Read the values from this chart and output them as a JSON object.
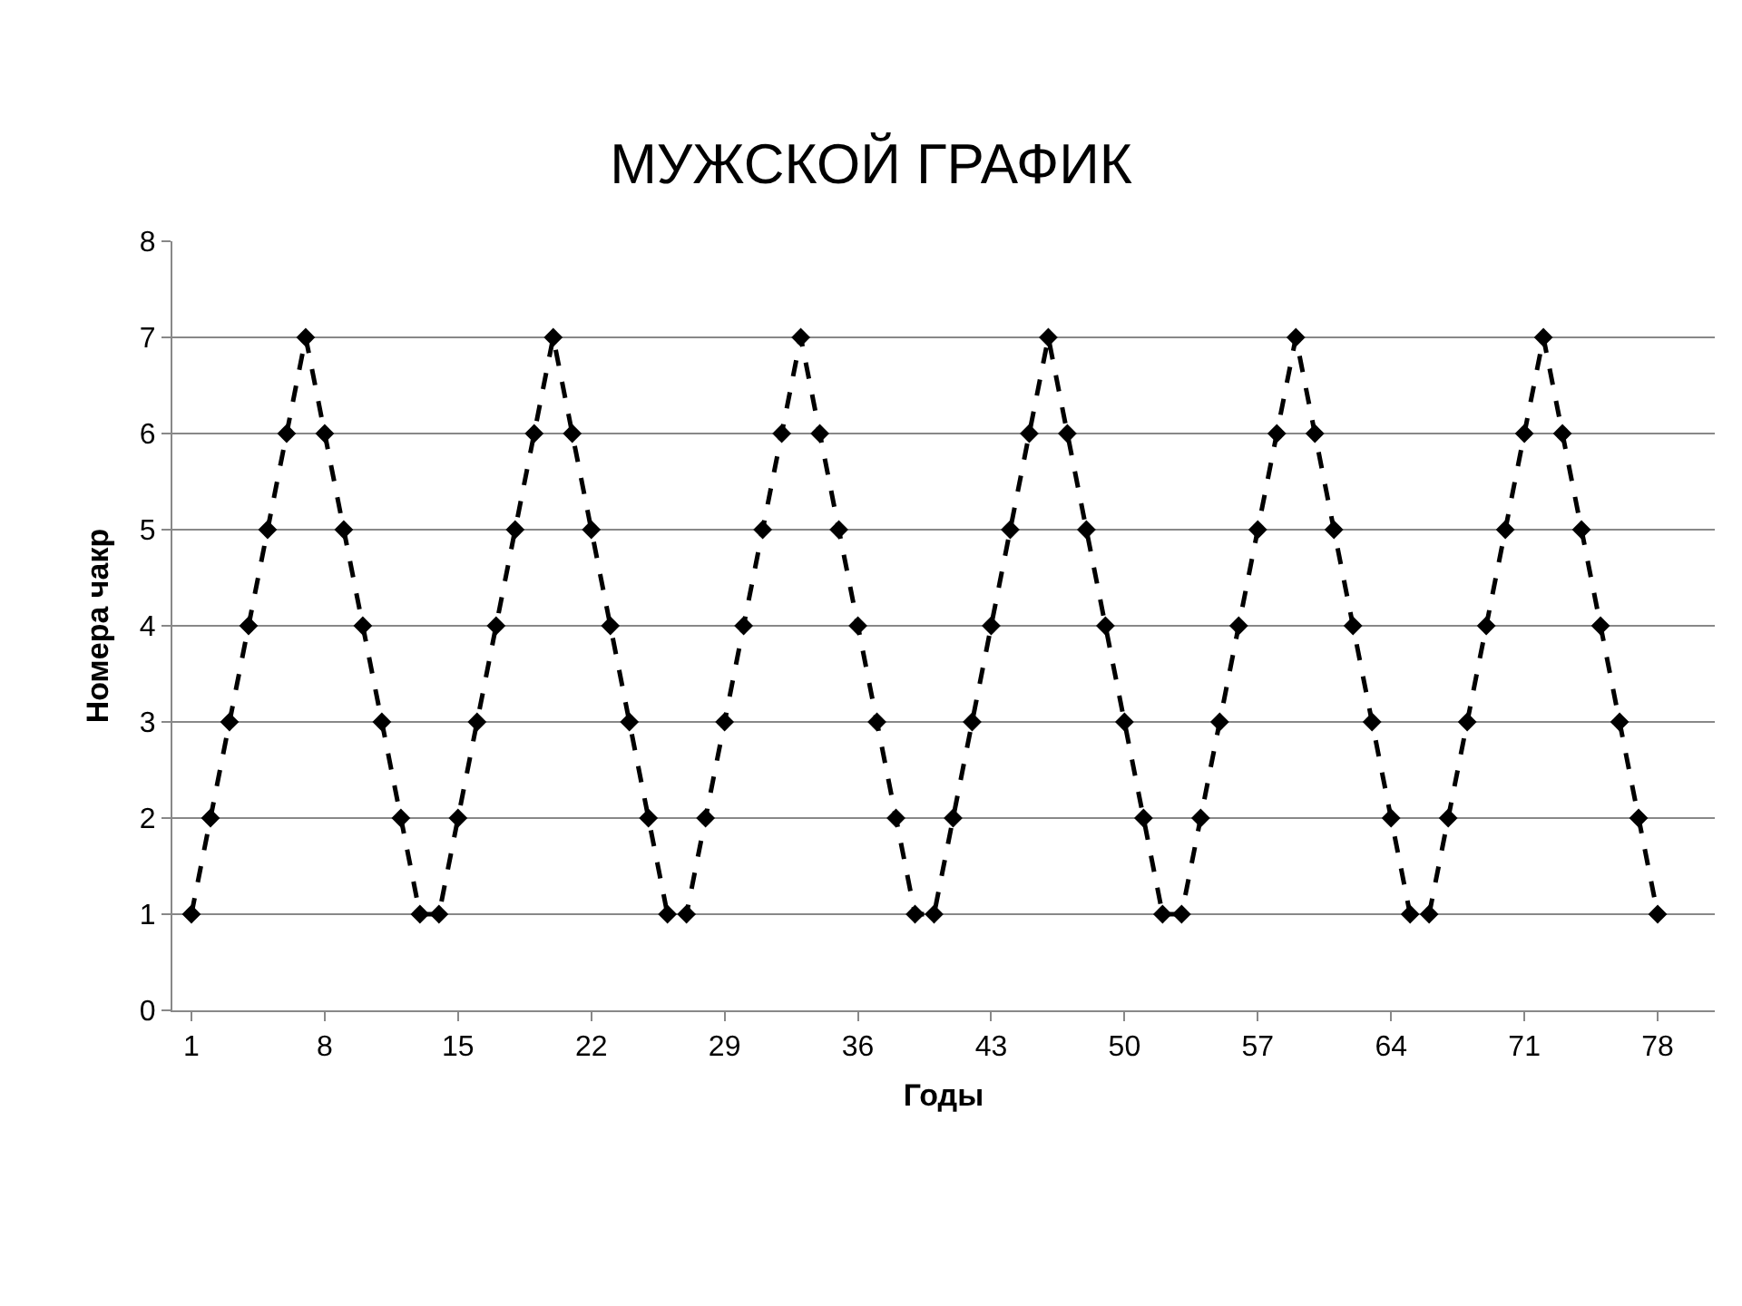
{
  "chart_data": {
    "type": "line",
    "title": "МУЖСКОЙ ГРАФИК",
    "xlabel": "Годы",
    "ylabel": "Номера чакр",
    "categories": [
      "1",
      null,
      null,
      null,
      null,
      null,
      null,
      "8",
      null,
      null,
      null,
      null,
      null,
      null,
      "15",
      null,
      null,
      null,
      null,
      null,
      null,
      "22",
      null,
      null,
      null,
      null,
      null,
      null,
      "29",
      null,
      null,
      null,
      null,
      null,
      null,
      "36",
      null,
      null,
      null,
      null,
      null,
      null,
      "43",
      null,
      null,
      null,
      null,
      null,
      null,
      "50",
      null,
      null,
      null,
      null,
      null,
      null,
      "57",
      null,
      null,
      null,
      null,
      null,
      null,
      "64",
      null,
      null,
      null,
      null,
      null,
      null,
      "71",
      null,
      null,
      null,
      null,
      null,
      null,
      "78"
    ],
    "series": [
      {
        "color": "#000000",
        "values": [
          1,
          2,
          3,
          4,
          5,
          6,
          7,
          6,
          5,
          4,
          3,
          2,
          1,
          1,
          2,
          3,
          4,
          5,
          6,
          7,
          6,
          5,
          4,
          3,
          2,
          1,
          1,
          2,
          3,
          4,
          5,
          6,
          7,
          6,
          5,
          4,
          3,
          2,
          1,
          1,
          2,
          3,
          4,
          5,
          6,
          7,
          6,
          5,
          4,
          3,
          2,
          1,
          1,
          2,
          3,
          4,
          5,
          6,
          7,
          6,
          5,
          4,
          3,
          2,
          1,
          1,
          2,
          3,
          4,
          5,
          6,
          7,
          6,
          5,
          4,
          3,
          2,
          1
        ]
      }
    ],
    "ylim": [
      0,
      8
    ],
    "yticks": [
      0,
      1,
      2,
      3,
      4,
      5,
      6,
      7,
      8
    ],
    "grid": "y",
    "marker": "diamond",
    "line_style": "dashed"
  }
}
